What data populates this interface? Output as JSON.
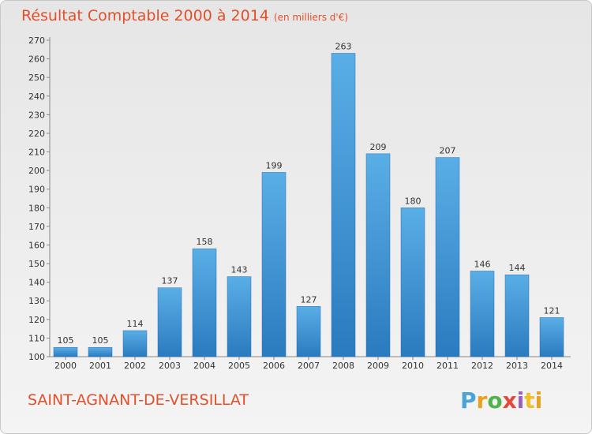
{
  "header": {
    "title": "Résultat Comptable 2000 à 2014",
    "subtitle": "(en milliers d'€)"
  },
  "footer": {
    "commune": "SAINT-AGNANT-DE-VERSILLAT",
    "logo_letters": [
      "P",
      "r",
      "o",
      "x",
      "i",
      "t",
      "i"
    ]
  },
  "colors": {
    "title": "#e2502b",
    "bar_top": "#5aaee6",
    "bar_bottom": "#2a7bbf"
  },
  "chart_data": {
    "type": "bar",
    "title": "Résultat Comptable 2000 à 2014",
    "subtitle": "(en milliers d'€)",
    "categories": [
      "2000",
      "2001",
      "2002",
      "2003",
      "2004",
      "2005",
      "2006",
      "2007",
      "2008",
      "2009",
      "2010",
      "2011",
      "2012",
      "2013",
      "2014"
    ],
    "values": [
      105,
      105,
      114,
      137,
      158,
      143,
      199,
      127,
      263,
      209,
      180,
      207,
      146,
      144,
      121
    ],
    "ylim": [
      100,
      270
    ],
    "yticks": [
      100,
      110,
      120,
      130,
      140,
      150,
      160,
      170,
      180,
      190,
      200,
      210,
      220,
      230,
      240,
      250,
      260,
      270
    ],
    "grid": false,
    "legend": "none",
    "data_labels": true
  }
}
